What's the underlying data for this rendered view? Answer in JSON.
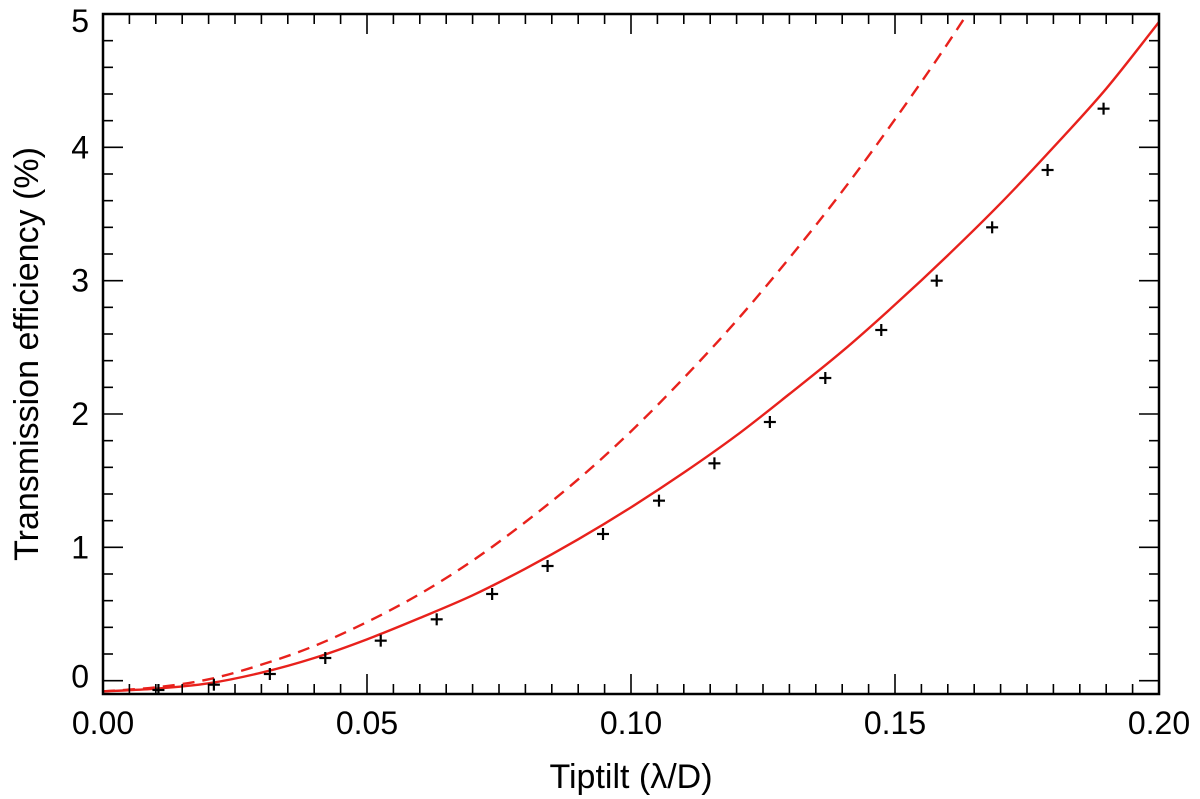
{
  "chart_data": {
    "type": "line",
    "title": "",
    "xlabel": "Tiptilt (λ/D)",
    "ylabel": "Transmission efficiency (%)",
    "xlim": [
      0.0,
      0.2
    ],
    "ylim": [
      -0.1,
      5.0
    ],
    "x_ticks": [
      "0.00",
      "0.05",
      "0.10",
      "0.15",
      "0.20"
    ],
    "y_ticks": [
      "0",
      "1",
      "2",
      "3",
      "4",
      "5"
    ],
    "grid": false,
    "legend": "none",
    "series": [
      {
        "style": "solid",
        "color": "#e8211c",
        "x": [
          0.0,
          0.01,
          0.02,
          0.03,
          0.04,
          0.05,
          0.06,
          0.07,
          0.08,
          0.09,
          0.1,
          0.11,
          0.12,
          0.13,
          0.14,
          0.15,
          0.16,
          0.17,
          0.18,
          0.19,
          0.2
        ],
        "y": [
          -0.08,
          -0.06,
          -0.02,
          0.06,
          0.17,
          0.31,
          0.47,
          0.64,
          0.84,
          1.06,
          1.3,
          1.56,
          1.84,
          2.15,
          2.47,
          2.82,
          3.19,
          3.58,
          4.0,
          4.44,
          4.94
        ]
      },
      {
        "style": "dashed",
        "color": "#e8211c",
        "x": [
          0.0,
          0.01,
          0.02,
          0.03,
          0.04,
          0.05,
          0.06,
          0.07,
          0.08,
          0.09,
          0.1,
          0.11,
          0.12,
          0.13,
          0.14,
          0.15,
          0.16,
          0.17,
          0.175
        ],
        "y": [
          -0.08,
          -0.05,
          0.01,
          0.12,
          0.26,
          0.44,
          0.65,
          0.9,
          1.19,
          1.51,
          1.87,
          2.27,
          2.7,
          3.17,
          3.67,
          4.21,
          4.78,
          5.39,
          5.7
        ]
      },
      {
        "style": "markers",
        "marker": "plus",
        "color": "#000000",
        "x": [
          0.0105,
          0.021,
          0.0316,
          0.0421,
          0.0526,
          0.0632,
          0.0737,
          0.0842,
          0.0947,
          0.1053,
          0.1158,
          0.1263,
          0.1368,
          0.1474,
          0.1579,
          0.1684,
          0.1789,
          0.1895
        ],
        "y": [
          -0.07,
          -0.03,
          0.05,
          0.17,
          0.3,
          0.46,
          0.65,
          0.86,
          1.1,
          1.35,
          1.63,
          1.94,
          2.27,
          2.63,
          3.0,
          3.4,
          3.83,
          4.29
        ]
      }
    ]
  }
}
